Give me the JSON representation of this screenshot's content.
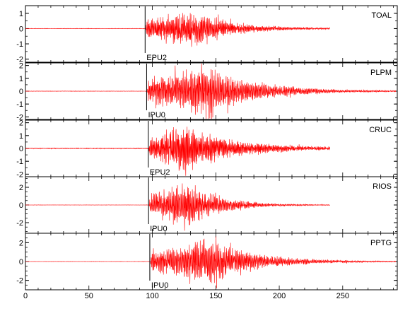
{
  "chart_data": {
    "type": "line",
    "x_ticks": [
      0,
      50,
      100,
      150,
      200,
      250
    ],
    "xlim": [
      0,
      293
    ],
    "series_color": "#ff0000",
    "panels": [
      {
        "station": "TOAL",
        "phase_label": "EPU2",
        "pick_x": 94.3,
        "ylim": [
          -2.2,
          1.5
        ],
        "y_ticks": [
          -2,
          -1,
          0,
          1
        ],
        "onset": 94.8,
        "peak_x": 131,
        "amp": 1.05,
        "rise": 10,
        "decay": 30,
        "noise": 0.012,
        "end_x": 240,
        "seed": 11,
        "freq": 1.4
      },
      {
        "station": "PLPM",
        "phase_label": "IPU0",
        "pick_x": 95.5,
        "ylim": [
          -2.2,
          2.2
        ],
        "y_ticks": [
          -2,
          -1,
          0,
          1,
          2
        ],
        "onset": 96.0,
        "peak_x": 142,
        "amp": 1.7,
        "rise": 22,
        "decay": 38,
        "noise": 0.012,
        "end_x": 292,
        "seed": 23,
        "freq": 1.3
      },
      {
        "station": "CRUC",
        "phase_label": "EPU2",
        "pick_x": 96.8,
        "ylim": [
          -2.2,
          2.2
        ],
        "y_ticks": [
          -2,
          -1,
          0,
          1,
          2
        ],
        "onset": 97.2,
        "peak_x": 125,
        "amp": 1.5,
        "rise": 12,
        "decay": 40,
        "noise": 0.025,
        "end_x": 240,
        "seed": 37,
        "freq": 1.5
      },
      {
        "station": "RIOS",
        "phase_label": "IPU0",
        "pick_x": 97.0,
        "ylim": [
          -3.2,
          3.2
        ],
        "y_ticks": [
          -2,
          0,
          2
        ],
        "onset": 97.6,
        "peak_x": 128,
        "amp": 2.3,
        "rise": 14,
        "decay": 24,
        "noise": 0.012,
        "end_x": 240,
        "seed": 53,
        "freq": 1.35
      },
      {
        "station": "PPTG",
        "phase_label": "IPU0",
        "pick_x": 98.0,
        "ylim": [
          -3.0,
          3.0
        ],
        "y_ticks": [
          -2,
          0,
          2
        ],
        "onset": 98.6,
        "peak_x": 143,
        "amp": 2.1,
        "rise": 24,
        "decay": 36,
        "noise": 0.012,
        "end_x": 292,
        "seed": 71,
        "freq": 1.3
      }
    ]
  }
}
